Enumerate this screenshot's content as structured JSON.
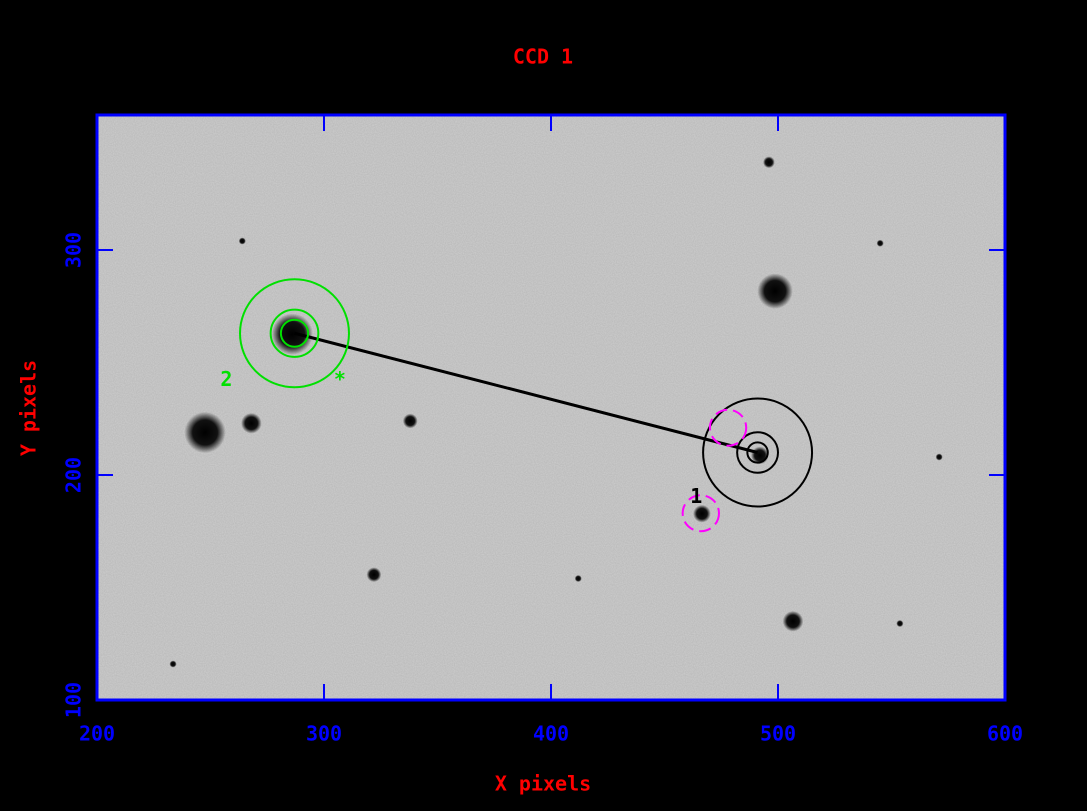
{
  "chart_data": {
    "type": "image",
    "title": "CCD 1",
    "xlabel": "X pixels",
    "ylabel": "Y pixels",
    "xlim": [
      200,
      600
    ],
    "ylim": [
      100,
      360
    ],
    "xticks": [
      200,
      300,
      400,
      500,
      600
    ],
    "yticks": [
      100,
      200,
      300
    ],
    "title_color": "#ff0000",
    "frame_color": "#0000ff",
    "background": "#cfcfcf",
    "stars": {
      "x": [
        247.6,
        268,
        286,
        338,
        322,
        498.7,
        496,
        492,
        466.5,
        506.6,
        264,
        545,
        412,
        553.7,
        233.5,
        571
      ],
      "y": [
        218.9,
        223,
        262.6,
        224,
        155.7,
        281.7,
        339,
        208.7,
        182.8,
        135,
        304,
        303,
        154,
        134,
        116,
        208
      ],
      "radius": [
        7,
        3.5,
        7,
        2.5,
        2.5,
        6,
        2,
        3,
        3,
        3.5,
        1.2,
        1.2,
        1.2,
        1.2,
        1.2,
        1.2
      ]
    },
    "apertures": [
      {
        "x": 287,
        "y": 263,
        "radii": [
          6,
          10.5,
          24
        ],
        "color": "#00e000"
      },
      {
        "x": 491,
        "y": 210,
        "radii": [
          4.5,
          9,
          24
        ],
        "color": "#000000"
      }
    ],
    "reference_circles": {
      "x": [
        466,
        478
      ],
      "y": [
        183,
        221
      ],
      "radius": [
        8,
        8
      ],
      "color": "#ff00ff"
    },
    "annotations": [
      {
        "text": "2",
        "x": 257,
        "y": 242,
        "color": "#00e000"
      },
      {
        "text": "*",
        "x": 307,
        "y": 242,
        "color": "#00e000"
      },
      {
        "text": "1",
        "x": 464,
        "y": 190,
        "color": "#000000"
      }
    ]
  }
}
